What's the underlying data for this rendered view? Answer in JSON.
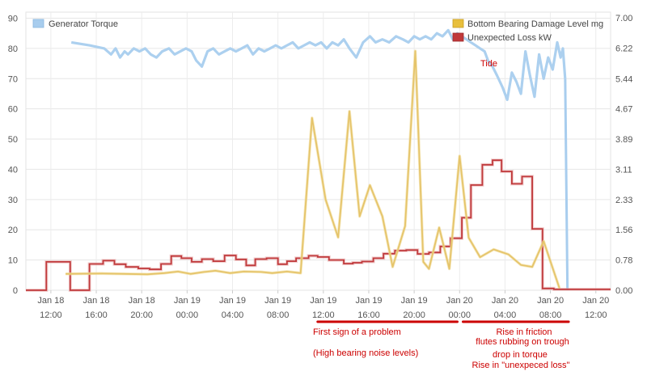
{
  "chart_data": {
    "type": "line",
    "grid": true,
    "legend_placement": "top-left and top-right",
    "y_left": {
      "ticks": [
        "0",
        "10",
        "20",
        "30",
        "40",
        "50",
        "60",
        "70",
        "80",
        "90"
      ],
      "range": [
        0,
        92
      ]
    },
    "y_right": {
      "ticks": [
        "0.00",
        "0.78",
        "1.56",
        "2.33",
        "3.11",
        "3.89",
        "4.67",
        "5.44",
        "6.22",
        "7.00"
      ],
      "range": [
        0,
        7.15
      ]
    },
    "x_ticks": [
      {
        "day": "Jan 18",
        "time": "12:00",
        "t": 12
      },
      {
        "day": "Jan 18",
        "time": "16:00",
        "t": 16
      },
      {
        "day": "Jan 18",
        "time": "20:00",
        "t": 20
      },
      {
        "day": "Jan 19",
        "time": "00:00",
        "t": 24
      },
      {
        "day": "Jan 19",
        "time": "04:00",
        "t": 28
      },
      {
        "day": "Jan 19",
        "time": "08:00",
        "t": 32
      },
      {
        "day": "Jan 19",
        "time": "12:00",
        "t": 36
      },
      {
        "day": "Jan 19",
        "time": "16:00",
        "t": 40
      },
      {
        "day": "Jan 19",
        "time": "20:00",
        "t": 44
      },
      {
        "day": "Jan 20",
        "time": "00:00",
        "t": 48
      },
      {
        "day": "Jan 20",
        "time": "04:00",
        "t": 52
      },
      {
        "day": "Jan 20",
        "time": "08:00",
        "t": 56
      },
      {
        "day": "Jan 20",
        "time": "12:00",
        "t": 60
      }
    ],
    "x_range": [
      9.8,
      61.3
    ],
    "series": [
      {
        "name": "Generator Torque",
        "axis": "left",
        "color": "#a8cdee",
        "style": "area-line",
        "x": [
          13.8,
          15.4,
          16.7,
          17.3,
          17.7,
          18.1,
          18.5,
          18.8,
          19.3,
          19.8,
          20.3,
          20.8,
          21.3,
          21.8,
          22.4,
          22.9,
          23.4,
          23.9,
          24.4,
          24.8,
          25.3,
          25.8,
          26.3,
          26.8,
          27.3,
          27.8,
          28.3,
          28.8,
          29.3,
          29.8,
          30.3,
          30.8,
          31.3,
          31.8,
          32.3,
          32.8,
          33.3,
          33.8,
          34.3,
          34.8,
          35.3,
          35.8,
          36.3,
          36.8,
          37.3,
          37.8,
          38.3,
          38.9,
          39.5,
          40.1,
          40.6,
          41.2,
          41.8,
          42.4,
          43.0,
          43.5,
          44.0,
          44.5,
          45.0,
          45.5,
          46.0,
          46.5,
          47.0,
          47.4,
          47.8,
          48.2,
          48.6,
          49.0,
          49.4,
          49.8,
          50.2,
          50.5,
          50.9,
          51.3,
          51.8,
          52.2,
          52.6,
          53.0,
          53.4,
          53.8,
          54.2,
          54.6,
          55.0,
          55.4,
          55.8,
          56.2,
          56.6,
          56.9,
          57.1,
          57.3
        ],
        "y": [
          82,
          81,
          80,
          78,
          80,
          77,
          79,
          78,
          80,
          79,
          80,
          78,
          77,
          79,
          80,
          78,
          79,
          80,
          79,
          76,
          74,
          79,
          80,
          78,
          79,
          80,
          79,
          80,
          81,
          78,
          80,
          79,
          80,
          81,
          80,
          81,
          82,
          80,
          81,
          82,
          81,
          82,
          80,
          82,
          81,
          83,
          80,
          77,
          82,
          84,
          82,
          83,
          82,
          84,
          83,
          82,
          84,
          83,
          84,
          83,
          85,
          84,
          86,
          83,
          85,
          84,
          83,
          82,
          81,
          80,
          79,
          76,
          74,
          71,
          67,
          63,
          72,
          69,
          65,
          79,
          71,
          64,
          78,
          70,
          77,
          73,
          82,
          77,
          80,
          70
        ],
        "extra": {
          "drop_x": [
            57.3,
            57.5
          ],
          "drop_y": [
            70,
            0
          ]
        }
      },
      {
        "name": "Bottom Bearing Damage Level mg",
        "axis": "right",
        "color": "#e5c46a",
        "style": "line",
        "x": [
          13.3,
          16.5,
          18.5,
          20.5,
          22.0,
          23.2,
          24.3,
          25.5,
          26.5,
          27.8,
          29.0,
          30.5,
          31.5,
          32.8,
          34.0,
          35.0,
          36.2,
          37.3,
          38.3,
          39.2,
          40.1,
          41.2,
          42.1,
          43.2,
          44.1,
          44.8,
          45.3,
          46.2,
          47.1,
          48.0,
          48.8,
          49.8,
          51.0,
          52.3,
          53.4,
          54.4,
          55.4,
          56.8
        ],
        "y": [
          0.42,
          0.43,
          0.42,
          0.41,
          0.44,
          0.48,
          0.42,
          0.47,
          0.5,
          0.44,
          0.48,
          0.47,
          0.44,
          0.48,
          0.44,
          4.43,
          2.33,
          1.36,
          4.6,
          1.9,
          2.7,
          1.9,
          0.6,
          1.65,
          6.15,
          0.73,
          0.55,
          1.61,
          0.55,
          3.45,
          1.35,
          0.85,
          1.05,
          0.92,
          0.65,
          0.6,
          1.26,
          0.05
        ]
      },
      {
        "name": "Unexpected Loss kW",
        "axis": "left",
        "color": "#c0393b",
        "style": "step",
        "x": [
          9.8,
          11.6,
          13.7,
          15.4,
          16.6,
          17.6,
          18.6,
          19.7,
          20.7,
          21.7,
          22.6,
          23.5,
          24.4,
          25.3,
          26.3,
          27.3,
          28.3,
          29.2,
          30.0,
          31.0,
          32.0,
          32.8,
          33.6,
          34.7,
          35.5,
          36.5,
          37.8,
          38.6,
          39.4,
          40.4,
          41.3,
          42.3,
          43.3,
          44.3,
          45.3,
          46.3,
          47.2,
          48.2,
          49.0,
          50.0,
          50.9,
          51.7,
          52.6,
          53.5,
          54.4,
          55.3,
          56.3,
          57.3,
          61.3
        ],
        "y": [
          0,
          9.4,
          0,
          8.7,
          9.8,
          8.6,
          7.7,
          7.2,
          6.9,
          8.7,
          11.3,
          10.6,
          9.4,
          10.3,
          9.6,
          11.5,
          10.2,
          8.2,
          10.3,
          10.6,
          8.6,
          9.6,
          10.6,
          11.4,
          11.0,
          10.0,
          8.8,
          9.1,
          9.5,
          10.6,
          12.1,
          13.1,
          13.3,
          12.0,
          12.5,
          14.5,
          17.2,
          24.0,
          34.8,
          41.5,
          43.0,
          39.3,
          35.2,
          37.6,
          20.3,
          0.6,
          0.3,
          0.3,
          0.3
        ]
      }
    ],
    "legend_left": {
      "label": "Generator Torque"
    },
    "legend_right": [
      {
        "label": "Bottom Bearing Damage Level mg"
      },
      {
        "label": "Unexpected Loss kW"
      }
    ],
    "annotations": [
      {
        "id": "tide",
        "text": "Tide"
      },
      {
        "id": "problem1",
        "text": "First sign of a problem"
      },
      {
        "id": "problem2",
        "text": "(High bearing noise levels)"
      },
      {
        "id": "friction1",
        "text": "Rise in friction"
      },
      {
        "id": "friction2",
        "text": "flutes rubbing on trough"
      },
      {
        "id": "friction3",
        "text": "drop in torque"
      },
      {
        "id": "friction4",
        "text": "Rise in \"unexpeced loss\""
      }
    ],
    "highlight_bars": [
      {
        "x_from": 35.5,
        "x_to": 47.8,
        "color": "#cc0000"
      },
      {
        "x_from": 48.3,
        "x_to": 57.6,
        "color": "#cc0000"
      }
    ]
  }
}
